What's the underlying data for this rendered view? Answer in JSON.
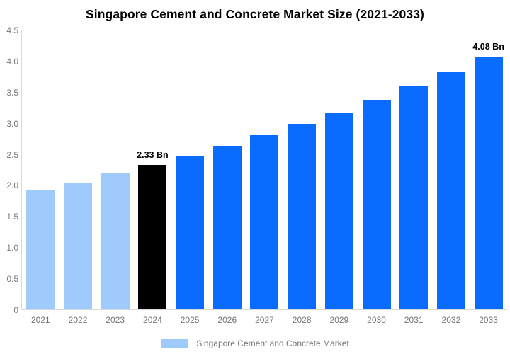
{
  "title": "Singapore Cement and Concrete Market Size (2021-2033)",
  "chart_data": {
    "type": "bar",
    "title": "Singapore Cement and Concrete Market Size (2021-2033)",
    "categories": [
      "2021",
      "2022",
      "2023",
      "2024",
      "2025",
      "2026",
      "2027",
      "2028",
      "2029",
      "2030",
      "2031",
      "2032",
      "2033"
    ],
    "values": [
      1.93,
      2.05,
      2.19,
      2.33,
      2.48,
      2.64,
      2.81,
      2.99,
      3.18,
      3.38,
      3.6,
      3.83,
      4.08
    ],
    "bar_periods": [
      "historical",
      "historical",
      "historical",
      "current",
      "forecast",
      "forecast",
      "forecast",
      "forecast",
      "forecast",
      "forecast",
      "forecast",
      "forecast",
      "forecast"
    ],
    "palette": {
      "historical": "#9ECBFC",
      "current": "#000000",
      "forecast": "#0A6CFF"
    },
    "annotations": [
      {
        "category": "2024",
        "text": "2.33 Bn"
      },
      {
        "category": "2033",
        "text": "4.08 Bn"
      }
    ],
    "xlabel": "",
    "ylabel": "",
    "ylim": [
      0,
      4.5
    ],
    "yticks": [
      "4.5",
      "4.0",
      "3.5",
      "3.0",
      "2.5",
      "2.0",
      "1.5",
      "1.0",
      "0.5",
      "0"
    ],
    "grid": false,
    "legend_position": "bottom",
    "legend": [
      {
        "label": "Singapore Cement and Concrete Market",
        "color": "#9ECBFC"
      }
    ],
    "text_color": "#757575",
    "axis_line_color": "#d9d9d9",
    "background_color": "#ffffff"
  }
}
